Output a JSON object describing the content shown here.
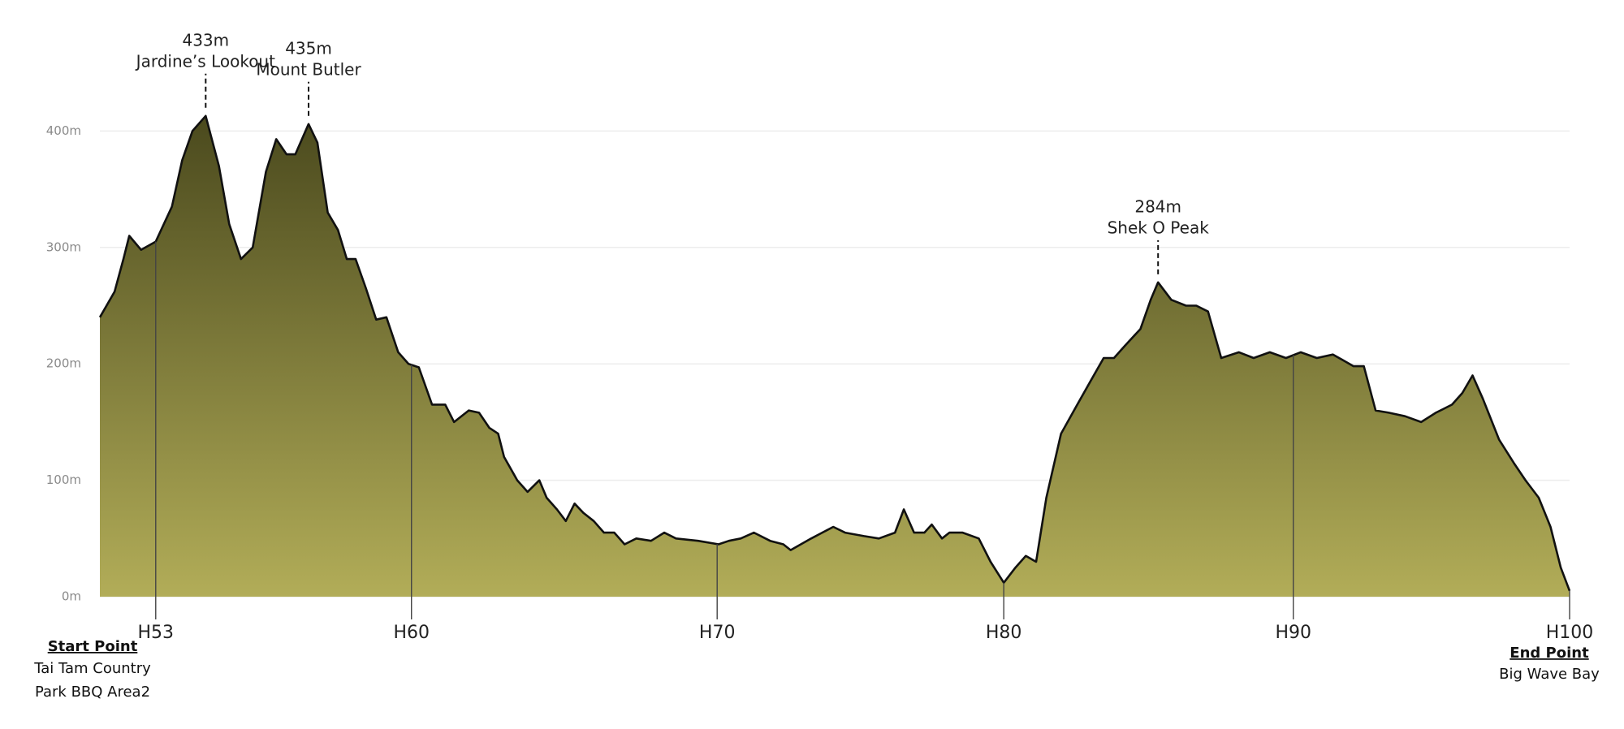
{
  "chart_data": {
    "type": "area",
    "x": [
      0,
      1.0,
      1.6,
      2.0,
      2.8,
      3.8,
      4.9,
      5.6,
      6.3,
      7.2,
      8.1,
      8.8,
      9.6,
      10.4,
      11.3,
      12.0,
      12.7,
      13.3,
      14.2,
      14.8,
      15.5,
      16.2,
      16.8,
      17.4,
      18.1,
      18.8,
      19.5,
      20.3,
      21.0,
      21.7,
      22.6,
      23.5,
      24.1,
      25.1,
      25.8,
      26.5,
      27.1,
      27.5,
      28.4,
      29.1,
      29.9,
      30.4,
      31.1,
      31.7,
      32.3,
      32.9,
      33.6,
      34.3,
      35.0,
      35.7,
      36.5,
      37.5,
      38.4,
      39.2,
      40.7,
      42.1,
      42.8,
      43.6,
      44.5,
      45.6,
      46.5,
      47.0,
      48.4,
      49.9,
      50.7,
      52.0,
      53.0,
      54.1,
      54.7,
      55.4,
      56.1,
      56.6,
      57.3,
      57.8,
      58.7,
      59.8,
      60.6,
      61.5,
      62.3,
      63.0,
      63.7,
      64.4,
      65.4,
      66.5,
      67.4,
      68.3,
      69.0,
      69.7,
      70.8,
      71.5,
      72.0,
      72.9,
      73.9,
      74.6,
      75.4,
      76.3,
      77.5,
      78.5,
      79.6,
      80.7,
      81.7,
      82.8,
      83.9,
      85.3,
      86.0,
      86.8,
      87.7,
      88.8,
      89.9,
      90.9,
      92.0,
      92.7,
      93.4,
      94.1,
      95.2,
      96.2,
      97.0,
      97.9,
      98.7,
      99.4,
      100
    ],
    "values": [
      240,
      262,
      290,
      310,
      298,
      305,
      335,
      375,
      400,
      413,
      370,
      320,
      290,
      300,
      365,
      393,
      380,
      380,
      406,
      390,
      330,
      315,
      290,
      290,
      265,
      238,
      240,
      210,
      200,
      197,
      165,
      165,
      150,
      160,
      158,
      145,
      140,
      120,
      100,
      90,
      100,
      85,
      75,
      65,
      80,
      72,
      65,
      55,
      55,
      45,
      50,
      48,
      55,
      50,
      48,
      45,
      48,
      50,
      55,
      48,
      45,
      40,
      50,
      60,
      55,
      52,
      50,
      55,
      75,
      55,
      55,
      62,
      50,
      55,
      55,
      50,
      30,
      12,
      25,
      35,
      30,
      85,
      140,
      165,
      185,
      205,
      205,
      215,
      230,
      255,
      270,
      255,
      250,
      250,
      245,
      205,
      210,
      205,
      210,
      205,
      210,
      205,
      208,
      198,
      198,
      160,
      158,
      155,
      150,
      158,
      165,
      175,
      190,
      170,
      135,
      115,
      100,
      85,
      60,
      25,
      5
    ],
    "xlim": [
      0,
      100
    ],
    "ylim": [
      0,
      500
    ],
    "xticks": [
      {
        "value": 3.8,
        "label": "H53"
      },
      {
        "value": 21.2,
        "label": "H60"
      },
      {
        "value": 42.0,
        "label": "H70"
      },
      {
        "value": 61.5,
        "label": "H80"
      },
      {
        "value": 81.2,
        "label": "H90"
      },
      {
        "value": 100,
        "label": "H100"
      }
    ],
    "yticks": [
      {
        "value": 0,
        "label": "0m"
      },
      {
        "value": 100,
        "label": "100m"
      },
      {
        "value": 200,
        "label": "200m"
      },
      {
        "value": 300,
        "label": "300m"
      },
      {
        "value": 400,
        "label": "400m"
      }
    ],
    "grid": true,
    "color_top": "#4a491d",
    "color_bottom": "#b2ad58",
    "annotations": [
      {
        "x": 7.2,
        "elevation": "433m",
        "name": "Jardine’s Lookout"
      },
      {
        "x": 14.2,
        "elevation": "435m",
        "name": "Mount Butler"
      },
      {
        "x": 72.0,
        "elevation": "284m",
        "name": "Shek O Peak"
      }
    ],
    "start": {
      "title": "Start Point",
      "lines": [
        "Tai Tam Country",
        "Park BBQ Area2"
      ]
    },
    "end": {
      "title": "End Point",
      "lines": [
        "Big Wave Bay"
      ]
    }
  }
}
